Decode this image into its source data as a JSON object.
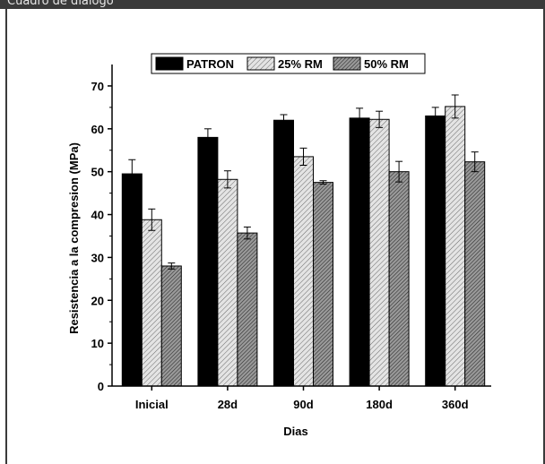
{
  "window": {
    "title": "Cuadro de diálogo"
  },
  "chart_data": {
    "type": "bar",
    "title": "",
    "xlabel": "Dias",
    "ylabel": "Resistencia a la compresion (MPa)",
    "ylim": [
      0,
      75
    ],
    "yticks": [
      0,
      10,
      20,
      30,
      40,
      50,
      60,
      70
    ],
    "categories": [
      "Inicial",
      "28d",
      "90d",
      "180d",
      "360d"
    ],
    "grid": false,
    "legend_position": "top",
    "series": [
      {
        "name": "PATRON",
        "pattern": "solid",
        "color": "#000000",
        "values": [
          49.5,
          58.0,
          62.0,
          62.5,
          63.0
        ],
        "errors": [
          3.3,
          2.0,
          1.3,
          2.3,
          2.0
        ]
      },
      {
        "name": "25% RM",
        "pattern": "light-hatch",
        "color": "#c8c8c8",
        "values": [
          38.8,
          48.2,
          53.5,
          62.2,
          65.2
        ],
        "errors": [
          2.5,
          2.0,
          2.0,
          1.9,
          2.7
        ]
      },
      {
        "name": "50% RM",
        "pattern": "dark-hatch",
        "color": "#707070",
        "values": [
          28.0,
          35.7,
          47.5,
          50.0,
          52.3
        ],
        "errors": [
          0.7,
          1.4,
          0.4,
          2.4,
          2.3
        ]
      }
    ]
  }
}
